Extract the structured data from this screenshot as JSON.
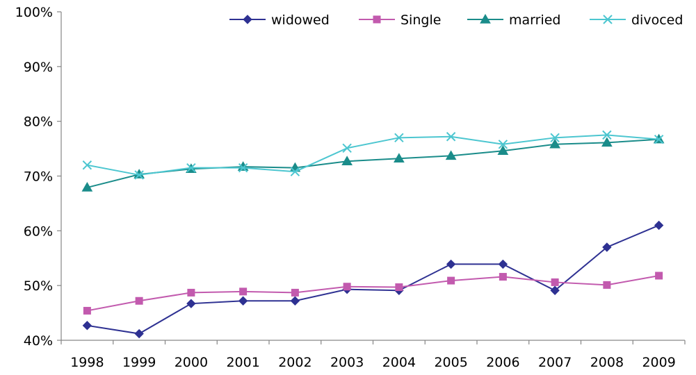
{
  "chart_data": {
    "type": "line",
    "title": "",
    "xlabel": "",
    "ylabel": "",
    "categories": [
      "1998",
      "1999",
      "2000",
      "2001",
      "2002",
      "2003",
      "2004",
      "2005",
      "2006",
      "2007",
      "2008",
      "2009"
    ],
    "ylim": [
      0.4,
      1.0
    ],
    "y_ticks": [
      "40%",
      "50%",
      "60%",
      "70%",
      "80%",
      "90%",
      "100%"
    ],
    "y_tick_values": [
      0.4,
      0.5,
      0.6,
      0.7,
      0.8,
      0.9,
      1.0
    ],
    "grid": false,
    "legend_position": "top-right",
    "series": [
      {
        "name": "widowed",
        "color": "#2E3192",
        "marker": "diamond",
        "values": [
          0.427,
          0.412,
          0.467,
          0.472,
          0.472,
          0.493,
          0.491,
          0.539,
          0.539,
          0.491,
          0.57,
          0.61
        ]
      },
      {
        "name": "Single",
        "color": "#C25AAE",
        "marker": "square",
        "values": [
          0.454,
          0.472,
          0.487,
          0.489,
          0.487,
          0.498,
          0.497,
          0.509,
          0.516,
          0.506,
          0.501,
          0.518
        ]
      },
      {
        "name": "married",
        "color": "#1A8C8A",
        "marker": "triangle",
        "values": [
          0.679,
          0.703,
          0.713,
          0.717,
          0.715,
          0.727,
          0.732,
          0.737,
          0.746,
          0.758,
          0.761,
          0.767
        ]
      },
      {
        "name": "divoced",
        "color": "#4CC6D0",
        "marker": "cross",
        "values": [
          0.72,
          0.702,
          0.715,
          0.715,
          0.708,
          0.751,
          0.77,
          0.772,
          0.758,
          0.77,
          0.775,
          0.767
        ]
      }
    ]
  }
}
